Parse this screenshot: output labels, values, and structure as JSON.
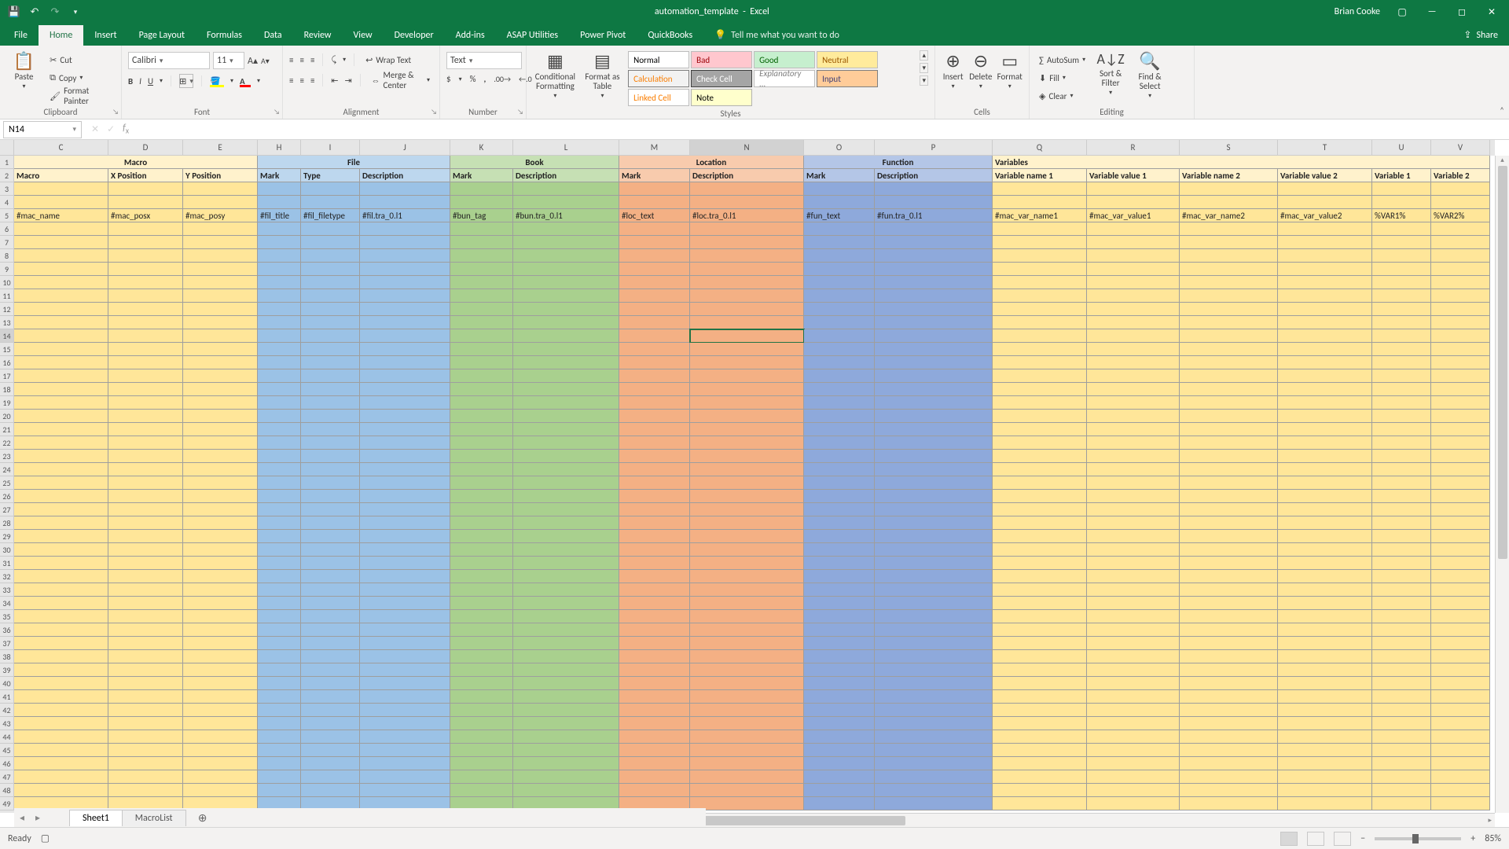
{
  "title": {
    "doc": "automation_template",
    "app": "Excel"
  },
  "user": "Brian Cooke",
  "ribbon_tabs": [
    "File",
    "Home",
    "Insert",
    "Page Layout",
    "Formulas",
    "Data",
    "Review",
    "View",
    "Developer",
    "Add-ins",
    "ASAP Utilities",
    "Power Pivot",
    "QuickBooks"
  ],
  "active_tab": "Home",
  "tell_me": "Tell me what you want to do",
  "share": "Share",
  "clipboard": {
    "paste": "Paste",
    "cut": "Cut",
    "copy": "Copy",
    "painter": "Format Painter",
    "label": "Clipboard"
  },
  "font": {
    "name": "Calibri",
    "size": "11",
    "label": "Font"
  },
  "alignment": {
    "wrap": "Wrap Text",
    "merge": "Merge & Center",
    "label": "Alignment"
  },
  "number": {
    "format": "Text",
    "label": "Number"
  },
  "styles": {
    "cond": "Conditional Formatting",
    "table": "Format as Table",
    "cells": [
      {
        "t": "Normal",
        "bg": "#ffffff",
        "fg": "#000",
        "bd": "#bcbcbc"
      },
      {
        "t": "Bad",
        "bg": "#ffc7ce",
        "fg": "#9c0006",
        "bd": "#bcbcbc"
      },
      {
        "t": "Good",
        "bg": "#c6efce",
        "fg": "#006100",
        "bd": "#bcbcbc"
      },
      {
        "t": "Neutral",
        "bg": "#ffeb9c",
        "fg": "#9c5700",
        "bd": "#bcbcbc"
      },
      {
        "t": "Calculation",
        "bg": "#f2f2f2",
        "fg": "#fa7d00",
        "bd": "#7f7f7f"
      },
      {
        "t": "Check Cell",
        "bg": "#a5a5a5",
        "fg": "#ffffff",
        "bd": "#3f3f3f"
      },
      {
        "t": "Explanatory ...",
        "bg": "#ffffff",
        "fg": "#7f7f7f",
        "bd": "#bcbcbc",
        "italic": true
      },
      {
        "t": "Input",
        "bg": "#ffcc99",
        "fg": "#3f3f76",
        "bd": "#7f7f7f"
      },
      {
        "t": "Linked Cell",
        "bg": "#ffffff",
        "fg": "#fa7d00",
        "bd": "#bcbcbc"
      },
      {
        "t": "Note",
        "bg": "#ffffcc",
        "fg": "#000",
        "bd": "#b2b2b2"
      }
    ],
    "label": "Styles"
  },
  "cells_grp": {
    "insert": "Insert",
    "delete": "Delete",
    "format": "Format",
    "label": "Cells"
  },
  "editing": {
    "autosum": "AutoSum",
    "fill": "Fill",
    "clear": "Clear",
    "sort": "Sort & Filter",
    "find": "Find & Select",
    "label": "Editing"
  },
  "namebox": "N14",
  "columns": [
    "C",
    "D",
    "E",
    "H",
    "I",
    "J",
    "K",
    "L",
    "M",
    "N",
    "O",
    "P",
    "Q",
    "R",
    "S",
    "T",
    "U",
    "V"
  ],
  "col_widths": {
    "C": 120,
    "D": 95,
    "E": 95,
    "H": 55,
    "I": 75,
    "J": 115,
    "K": 80,
    "L": 135,
    "M": 90,
    "N": 145,
    "O": 90,
    "P": 150,
    "Q": 120,
    "R": 118,
    "S": 125,
    "T": 120,
    "U": 75,
    "V": 75
  },
  "sections": [
    {
      "name": "Macro",
      "span": [
        "C",
        "D",
        "E"
      ],
      "bg": "bg-macro",
      "bg_h": "bg-macro-h"
    },
    {
      "name": "File",
      "span": [
        "H",
        "I",
        "J"
      ],
      "bg": "bg-file",
      "bg_h": "bg-file-h"
    },
    {
      "name": "Book",
      "span": [
        "K",
        "L"
      ],
      "bg": "bg-book",
      "bg_h": "bg-book-h"
    },
    {
      "name": "Location",
      "span": [
        "M",
        "N"
      ],
      "bg": "bg-loc",
      "bg_h": "bg-loc-h"
    },
    {
      "name": "Function",
      "span": [
        "O",
        "P"
      ],
      "bg": "bg-func",
      "bg_h": "bg-func-h"
    },
    {
      "name": "Variables",
      "span": [
        "Q",
        "R",
        "S",
        "T",
        "U",
        "V"
      ],
      "bg": "bg-var",
      "bg_h": "bg-var-h",
      "left_align": true
    }
  ],
  "headers2": {
    "C": "Macro",
    "D": "X Position",
    "E": "Y Position",
    "H": "Mark",
    "I": "Type",
    "J": "Description",
    "K": "Mark",
    "L": "Description",
    "M": "Mark",
    "N": "Description",
    "O": "Mark",
    "P": "Description",
    "Q": "Variable name 1",
    "R": "Variable value 1",
    "S": "Variable name 2",
    "T": "Variable value 2",
    "U": "Variable 1",
    "V": "Variable 2"
  },
  "row5": {
    "C": "#mac_name",
    "D": "#mac_posx",
    "E": "#mac_posy",
    "H": "#fil_title",
    "I": "#fil_filetype",
    "J": "#fil.tra_0.l1",
    "K": "#bun_tag",
    "L": "#bun.tra_0.l1",
    "M": "#loc_text",
    "N": "#loc.tra_0.l1",
    "O": "#fun_text",
    "P": "#fun.tra_0.l1",
    "Q": "#mac_var_name1",
    "R": "#mac_var_value1",
    "S": "#mac_var_name2",
    "T": "#mac_var_value2",
    "U": "%VAR1%",
    "V": "%VAR2%"
  },
  "row_numbers_start": 1,
  "row_numbers_end": 49,
  "sheets": [
    "Sheet1",
    "MacroList"
  ],
  "active_sheet": "Sheet1",
  "status": {
    "ready": "Ready",
    "zoom": "85%"
  },
  "selected_cell": {
    "col": "N",
    "row": 14
  }
}
